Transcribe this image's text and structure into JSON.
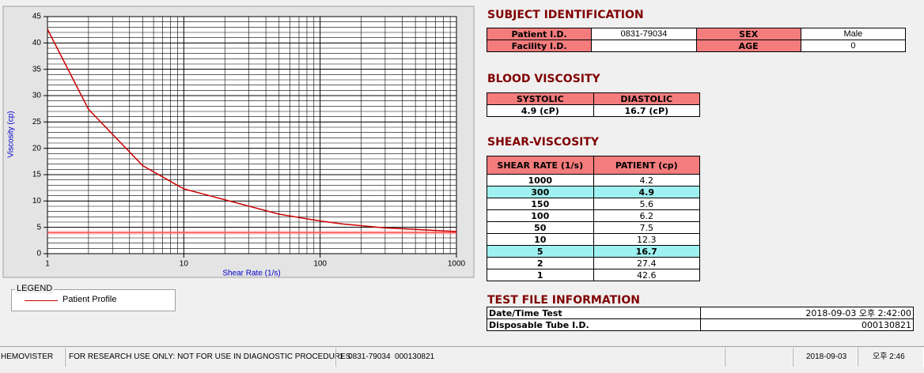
{
  "chart_data": {
    "type": "line",
    "x_label": "Shear Rate (1/s)",
    "y_label": "Viscosity (cp)",
    "x": [
      1000,
      300,
      150,
      100,
      50,
      10,
      5,
      2,
      1
    ],
    "series": [
      {
        "name": "Patient Profile",
        "color": "#cc0000",
        "values": [
          4.2,
          4.9,
          5.6,
          6.2,
          7.5,
          12.3,
          16.7,
          27.4,
          42.6
        ]
      }
    ],
    "xlim": [
      1,
      1000
    ],
    "ylim": [
      0,
      45
    ],
    "xticks": [
      1,
      10,
      100,
      1000
    ],
    "yticks": [
      0,
      5,
      10,
      15,
      20,
      25,
      30,
      35,
      40,
      45
    ],
    "xscale": "log",
    "grid": true,
    "reference_line": {
      "value": 4,
      "color": "#ff5050"
    }
  },
  "legend": {
    "title": "LEGEND"
  },
  "subject": {
    "title": "SUBJECT IDENTIFICATION",
    "patient_id_label": "Patient I.D.",
    "patient_id": "0831-79034",
    "sex_label": "SEX",
    "sex": "Male",
    "facility_id_label": "Facility I.D.",
    "age_label": "AGE",
    "age": 0
  },
  "blood_viscosity": {
    "title": "BLOOD VISCOSITY",
    "headers": [
      "SYSTOLIC",
      "DIASTOLIC"
    ],
    "values": [
      "4.9 (cP)",
      "16.7 (cP)"
    ]
  },
  "shear_viscosity": {
    "title": "SHEAR-VISCOSITY",
    "headers": [
      "SHEAR RATE (1/s)",
      "PATIENT (cp)"
    ]
  },
  "test_file": {
    "title": "TEST FILE INFORMATION",
    "rows": [
      [
        "Date/Time Test",
        "2018-09-03  오후 2:42:00"
      ],
      [
        "Disposable Tube I.D.",
        "000130821"
      ]
    ]
  },
  "status_bar": [
    "HEMOVISTER",
    "FOR RESEARCH USE ONLY: NOT FOR USE IN DIAGNOSTIC PROCEDURES",
    "1  0831-79034  000130821",
    "2018-09-03",
    "오후 2:46"
  ]
}
